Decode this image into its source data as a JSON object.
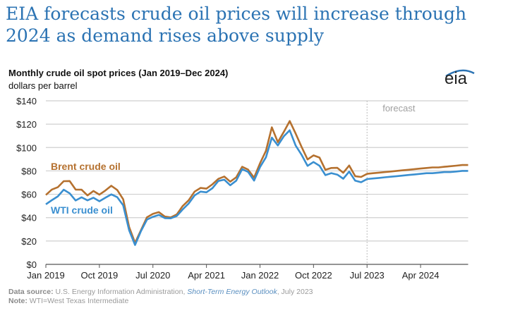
{
  "headline": "EIA forecasts crude oil prices will increase through 2024 as demand rises above supply",
  "logo_text": "eia",
  "chart_data": {
    "type": "line",
    "title": "Monthly crude oil spot prices (Jan 2019–Dec 2024)",
    "ylabel": "dollars per barrel",
    "ylim": [
      0,
      140
    ],
    "yticks": [
      "$0",
      "$20",
      "$40",
      "$60",
      "$80",
      "$100",
      "$120",
      "$140"
    ],
    "ytick_values": [
      0,
      20,
      40,
      60,
      80,
      100,
      120,
      140
    ],
    "x_start": "Jan 2019",
    "x_end": "Dec 2024",
    "xticks": [
      "Jan 2019",
      "Oct 2019",
      "Jul 2020",
      "Apr 2021",
      "Jan 2022",
      "Oct 2022",
      "Jul 2023",
      "Apr 2024"
    ],
    "forecast_start": "Jul 2023",
    "forecast_label": "forecast",
    "grid": true,
    "series": [
      {
        "name": "Brent crude oil",
        "color": "#b5712f",
        "values": [
          59.4,
          64,
          66,
          71.2,
          71.3,
          64,
          63.9,
          59,
          62.8,
          59.7,
          63.2,
          67.3,
          63.6,
          55.7,
          32,
          18.4,
          29.4,
          40.3,
          43.2,
          44.7,
          40.9,
          40.2,
          42.7,
          49.9,
          54.8,
          62.3,
          65.4,
          64.8,
          68.5,
          73.2,
          75.2,
          70.8,
          74.5,
          83.5,
          81.1,
          74.2,
          86.5,
          97.1,
          117.3,
          104.6,
          113.3,
          122.7,
          111.9,
          100.5,
          89.8,
          93.3,
          91.4,
          80.9,
          82.5,
          82.6,
          78.4,
          84.6,
          75.5,
          74.8,
          77.5,
          78,
          78.5,
          79,
          79.5,
          80,
          80.5,
          81,
          81.5,
          82,
          82.5,
          83,
          83,
          83.5,
          84,
          84.5,
          85,
          85
        ]
      },
      {
        "name": "WTI crude oil",
        "color": "#3a8fd0",
        "values": [
          51.4,
          54.9,
          58.2,
          63.9,
          60.8,
          54.7,
          57.4,
          54.8,
          57,
          54,
          57,
          59.9,
          57.5,
          50.5,
          29.2,
          16.6,
          28.6,
          38.3,
          40.7,
          42.3,
          39.6,
          39.4,
          41.4,
          47,
          52,
          59,
          62.3,
          61.7,
          65.2,
          71.4,
          72.5,
          67.7,
          71.6,
          81.5,
          79.2,
          71.7,
          83.2,
          91.6,
          108.5,
          101.8,
          109.6,
          114.8,
          101.6,
          93.7,
          84.3,
          87.6,
          84.4,
          76.4,
          78.1,
          76.8,
          73.3,
          79.4,
          71.6,
          70.3,
          73,
          73.5,
          74,
          74.5,
          75,
          75.5,
          76,
          76.5,
          77,
          77.5,
          78,
          78,
          78.5,
          79,
          79,
          79.5,
          80,
          80
        ]
      }
    ]
  },
  "footer": {
    "source_label": "Data source:",
    "source_text": "U.S. Energy Information Administration,",
    "source_link": "Short-Term Energy Outlook",
    "source_date": ", July 2023",
    "note_label": "Note:",
    "note_text": "WTI=West Texas Intermediate"
  }
}
